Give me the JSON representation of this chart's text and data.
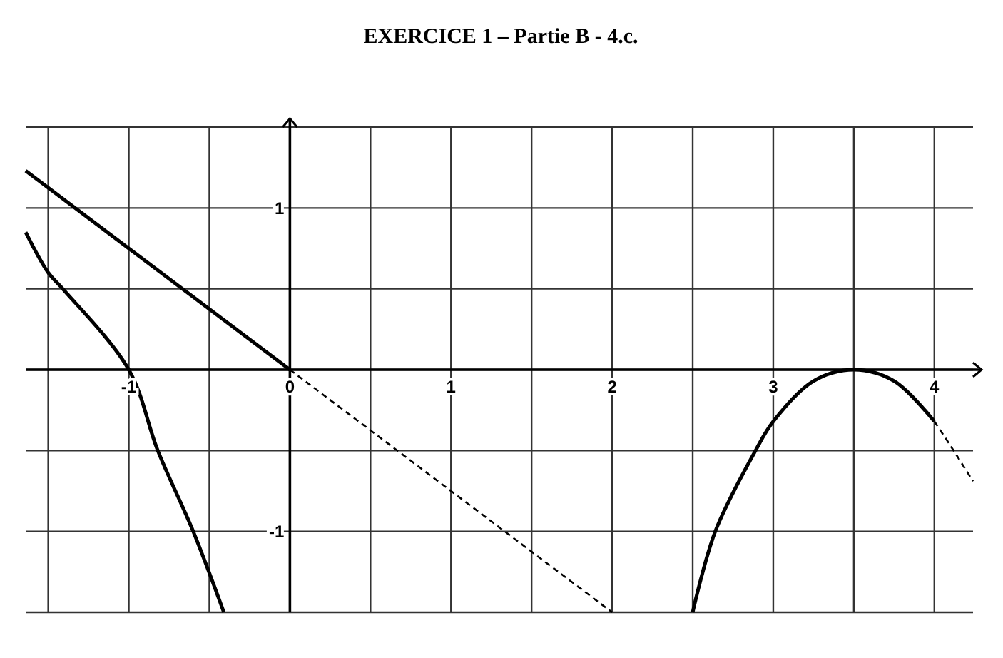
{
  "chart_data": {
    "type": "line",
    "title": "EXERCICE 1 – Partie B - 4.c.",
    "xlim": [
      -1.64,
      4.24
    ],
    "ylim": [
      -1.5,
      1.5
    ],
    "xticks": [
      {
        "value": -1.5,
        "label": null
      },
      -1,
      {
        "value": -0.5,
        "label": null
      },
      0,
      {
        "value": 0.5,
        "label": null
      },
      1,
      {
        "value": 1.5,
        "label": null
      },
      2,
      {
        "value": 2.5,
        "label": null
      },
      3,
      {
        "value": 3.5,
        "label": null
      },
      4
    ],
    "yticks": [
      {
        "value": -1.5,
        "label": null
      },
      -1,
      {
        "value": -0.5,
        "label": null
      },
      {
        "value": 0,
        "label": null
      },
      {
        "value": 0.5,
        "label": null
      },
      1,
      {
        "value": 1.5,
        "label": null
      }
    ],
    "grid": true,
    "marker": "none",
    "series": [
      {
        "color": "#000000",
        "line_style": "solid",
        "x": [
          -1.64,
          -1.5,
          -1.41,
          -1,
          -0.82,
          -0.6,
          -0.41
        ],
        "values": [
          0.85,
          0.6,
          0.5,
          0,
          -0.5,
          -1,
          -1.5
        ]
      },
      {
        "color": "#000000",
        "line_style": "solid",
        "x": [
          -1.64,
          0
        ],
        "values": [
          1.23,
          0
        ]
      },
      {
        "color": "#000000",
        "line_style": "dashed",
        "x": [
          0,
          2
        ],
        "values": [
          0,
          -1.5
        ]
      },
      {
        "color": "#000000",
        "line_style": "solid",
        "x": [
          2.5,
          2.64,
          2.89,
          3,
          3.25,
          3.5,
          3.75,
          4
        ],
        "values": [
          -1.5,
          -1,
          -0.5,
          -0.32,
          -0.07,
          0,
          -0.07,
          -0.32
        ]
      },
      {
        "color": "#000000",
        "line_style": "dashed",
        "x": [
          4,
          4.1,
          4.24
        ],
        "values": [
          -0.32,
          -0.47,
          -0.69
        ]
      }
    ]
  }
}
